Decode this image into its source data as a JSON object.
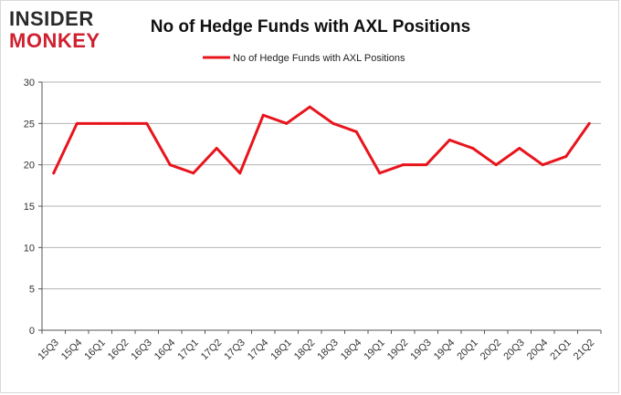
{
  "logo": {
    "line1": "INSIDER",
    "line2": "MONKEY"
  },
  "colors": {
    "series": "#e8141c",
    "grid": "#b3b3b3",
    "logo_accent": "#cf2030"
  },
  "chart_data": {
    "type": "line",
    "title": "No of Hedge Funds with AXL Positions",
    "xlabel": "",
    "ylabel": "",
    "ylim": [
      0,
      30
    ],
    "yticks": [
      0,
      5,
      10,
      15,
      20,
      25,
      30
    ],
    "grid": true,
    "legend_position": "top-center",
    "categories": [
      "15Q3",
      "15Q4",
      "16Q1",
      "16Q2",
      "16Q3",
      "16Q4",
      "17Q1",
      "17Q2",
      "17Q3",
      "17Q4",
      "18Q1",
      "18Q2",
      "18Q3",
      "18Q4",
      "19Q1",
      "19Q2",
      "19Q3",
      "19Q4",
      "20Q1",
      "20Q2",
      "20Q3",
      "20Q4",
      "21Q1",
      "21Q2"
    ],
    "series": [
      {
        "name": "No of Hedge Funds with AXL Positions",
        "values": [
          19,
          25,
          25,
          25,
          25,
          20,
          19,
          22,
          19,
          26,
          25,
          27,
          25,
          24,
          19,
          20,
          20,
          23,
          22,
          20,
          22,
          20,
          21,
          25
        ]
      }
    ]
  }
}
